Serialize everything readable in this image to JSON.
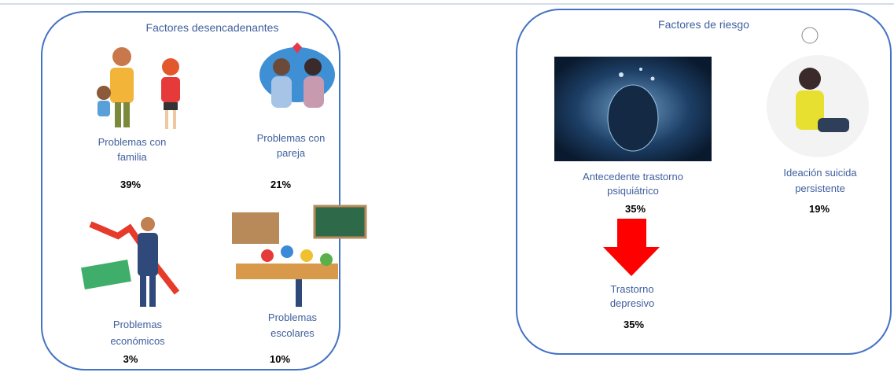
{
  "panels": [
    {
      "title": "Factores desencadenantes",
      "items": [
        {
          "label": [
            "Problemas con",
            "familia"
          ],
          "percent": "39%"
        },
        {
          "label": [
            "Problemas con",
            "pareja"
          ],
          "percent": "21%"
        },
        {
          "label": [
            "Problemas",
            "económicos"
          ],
          "percent": "3%"
        },
        {
          "label": [
            "Problemas",
            "escolares"
          ],
          "percent": "10%"
        }
      ]
    },
    {
      "title": "Factores de riesgo",
      "items": [
        {
          "label": [
            "Antecedente trastorno",
            "psiquiátrico"
          ],
          "percent": "35%"
        },
        {
          "label": [
            "Ideación suicida",
            "persistente"
          ],
          "percent": "19%"
        },
        {
          "label": [
            "Trastorno",
            "depresivo"
          ],
          "percent": "35%"
        }
      ]
    }
  ]
}
